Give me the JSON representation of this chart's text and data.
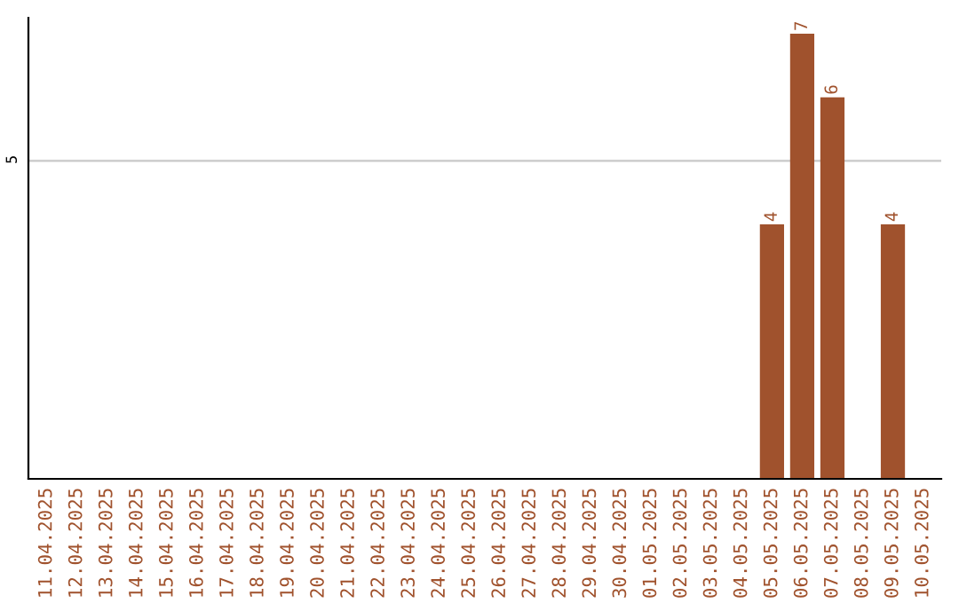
{
  "chart_data": {
    "type": "bar",
    "categories": [
      "11.04.2025",
      "12.04.2025",
      "13.04.2025",
      "14.04.2025",
      "15.04.2025",
      "16.04.2025",
      "17.04.2025",
      "18.04.2025",
      "19.04.2025",
      "20.04.2025",
      "21.04.2025",
      "22.04.2025",
      "23.04.2025",
      "24.04.2025",
      "25.04.2025",
      "26.04.2025",
      "27.04.2025",
      "28.04.2025",
      "29.04.2025",
      "30.04.2025",
      "01.05.2025",
      "02.05.2025",
      "03.05.2025",
      "04.05.2025",
      "05.05.2025",
      "06.05.2025",
      "07.05.2025",
      "08.05.2025",
      "09.05.2025",
      "10.05.2025"
    ],
    "values": [
      null,
      null,
      null,
      null,
      null,
      null,
      null,
      null,
      null,
      null,
      null,
      null,
      null,
      null,
      null,
      null,
      null,
      null,
      null,
      null,
      null,
      null,
      null,
      null,
      4,
      7,
      6,
      null,
      4,
      null
    ],
    "value_labels": [
      null,
      null,
      null,
      null,
      null,
      null,
      null,
      null,
      null,
      null,
      null,
      null,
      null,
      null,
      null,
      null,
      null,
      null,
      null,
      null,
      null,
      null,
      null,
      null,
      "4",
      "7",
      "6",
      null,
      "4",
      null
    ],
    "color": "#a0522d",
    "ylim": [
      0,
      7.25
    ],
    "yticks": [
      5
    ],
    "grid": "y"
  }
}
